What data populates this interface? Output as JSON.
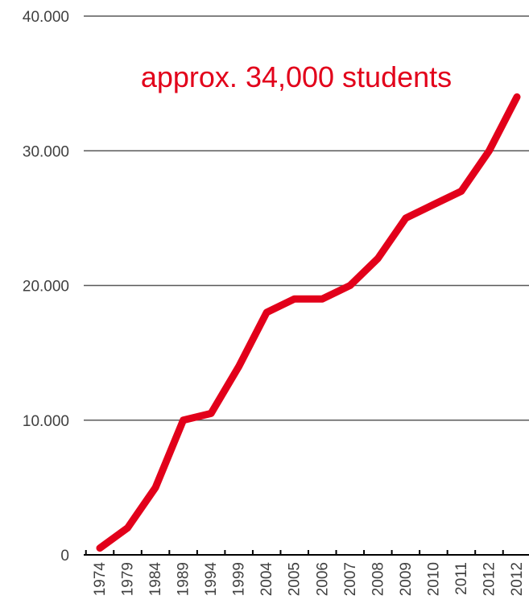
{
  "chart_data": {
    "type": "line",
    "x": [
      "1974",
      "1979",
      "1984",
      "1989",
      "1994",
      "1999",
      "2004",
      "2005",
      "2006",
      "2007",
      "2008",
      "2009",
      "2010",
      "2011",
      "2012",
      "2012"
    ],
    "series": [
      {
        "values": [
          500,
          2000,
          5000,
          10000,
          10500,
          14000,
          18000,
          19000,
          19000,
          20000,
          22000,
          25000,
          26000,
          27000,
          30000,
          34000
        ],
        "color": "#e2001a"
      }
    ],
    "y_ticks": [
      "0",
      "10.000",
      "20.000",
      "30.000",
      "40.000"
    ],
    "y_tick_values": [
      0,
      10000,
      20000,
      30000,
      40000
    ],
    "ylim": [
      0,
      40000
    ],
    "grid": true,
    "annotation": "approx. 34,000 students",
    "colors": {
      "line": "#e2001a",
      "annotation": "#e2001a",
      "grid": "#595959",
      "text": "#404040"
    }
  }
}
